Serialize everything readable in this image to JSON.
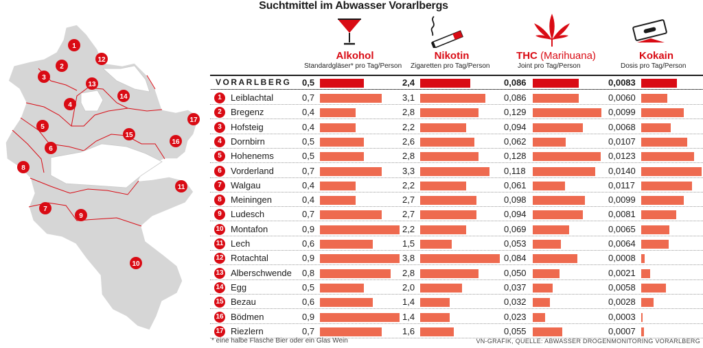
{
  "chart_data": {
    "type": "table",
    "title": "Suchtmittel im Abwasser Vorarlbergs",
    "series": [
      {
        "name": "Alkohol",
        "unit": "Standardgläser* pro Tag/Person",
        "color": "#ee6a4f",
        "max": 0.9
      },
      {
        "name": "Nikotin",
        "unit": "Zigaretten pro Tag/Person",
        "color": "#ee6a4f",
        "max": 3.8
      },
      {
        "name": "THC",
        "name_suffix": "(Marihuana)",
        "unit": "Joint pro Tag/Person",
        "color": "#ee6a4f",
        "max": 0.129
      },
      {
        "name": "Kokain",
        "unit": "Dosis pro Tag/Person",
        "color": "#ee6a4f",
        "max": 0.014
      }
    ],
    "total": {
      "label": "VORARLBERG",
      "values": [
        0.5,
        2.4,
        0.086,
        0.0083
      ],
      "labels": [
        "0,5",
        "2,4",
        "0,086",
        "0,0083"
      ]
    },
    "regions": [
      {
        "num": "1",
        "name": "Leiblachtal",
        "values": [
          0.7,
          3.1,
          0.086,
          0.006
        ],
        "labels": [
          "0,7",
          "3,1",
          "0,086",
          "0,0060"
        ]
      },
      {
        "num": "2",
        "name": "Bregenz",
        "values": [
          0.4,
          2.8,
          0.129,
          0.0099
        ],
        "labels": [
          "0,4",
          "2,8",
          "0,129",
          "0,0099"
        ]
      },
      {
        "num": "3",
        "name": "Hofsteig",
        "values": [
          0.4,
          2.2,
          0.094,
          0.0068
        ],
        "labels": [
          "0,4",
          "2,2",
          "0,094",
          "0,0068"
        ]
      },
      {
        "num": "4",
        "name": "Dornbirn",
        "values": [
          0.5,
          2.6,
          0.062,
          0.0107
        ],
        "labels": [
          "0,5",
          "2,6",
          "0,062",
          "0,0107"
        ]
      },
      {
        "num": "5",
        "name": "Hohenems",
        "values": [
          0.5,
          2.8,
          0.128,
          0.0123
        ],
        "labels": [
          "0,5",
          "2,8",
          "0,128",
          "0,0123"
        ]
      },
      {
        "num": "6",
        "name": "Vorderland",
        "values": [
          0.7,
          3.3,
          0.118,
          0.014
        ],
        "labels": [
          "0,7",
          "3,3",
          "0,118",
          "0,0140"
        ]
      },
      {
        "num": "7",
        "name": "Walgau",
        "values": [
          0.4,
          2.2,
          0.061,
          0.0117
        ],
        "labels": [
          "0,4",
          "2,2",
          "0,061",
          "0,0117"
        ]
      },
      {
        "num": "8",
        "name": "Meiningen",
        "values": [
          0.4,
          2.7,
          0.098,
          0.0099
        ],
        "labels": [
          "0,4",
          "2,7",
          "0,098",
          "0,0099"
        ]
      },
      {
        "num": "9",
        "name": "Ludesch",
        "values": [
          0.7,
          2.7,
          0.094,
          0.0081
        ],
        "labels": [
          "0,7",
          "2,7",
          "0,094",
          "0,0081"
        ]
      },
      {
        "num": "10",
        "name": "Montafon",
        "values": [
          0.9,
          2.2,
          0.069,
          0.0065
        ],
        "labels": [
          "0,9",
          "2,2",
          "0,069",
          "0,0065"
        ]
      },
      {
        "num": "11",
        "name": "Lech",
        "values": [
          0.6,
          1.5,
          0.053,
          0.0064
        ],
        "labels": [
          "0,6",
          "1,5",
          "0,053",
          "0,0064"
        ]
      },
      {
        "num": "12",
        "name": "Rotachtal",
        "values": [
          0.9,
          3.8,
          0.084,
          0.0008
        ],
        "labels": [
          "0,9",
          "3,8",
          "0,084",
          "0,0008"
        ]
      },
      {
        "num": "13",
        "name": "Alberschwende",
        "values": [
          0.8,
          2.8,
          0.05,
          0.0021
        ],
        "labels": [
          "0,8",
          "2,8",
          "0,050",
          "0,0021"
        ]
      },
      {
        "num": "14",
        "name": "Egg",
        "values": [
          0.5,
          2.0,
          0.037,
          0.0058
        ],
        "labels": [
          "0,5",
          "2,0",
          "0,037",
          "0,0058"
        ]
      },
      {
        "num": "15",
        "name": "Bezau",
        "values": [
          0.6,
          1.4,
          0.032,
          0.0028
        ],
        "labels": [
          "0,6",
          "1,4",
          "0,032",
          "0,0028"
        ]
      },
      {
        "num": "16",
        "name": "Bödmen",
        "values": [
          0.9,
          1.4,
          0.023,
          0.0003
        ],
        "labels": [
          "0,9",
          "1,4",
          "0,023",
          "0,0003"
        ]
      },
      {
        "num": "17",
        "name": "Riezlern",
        "values": [
          0.7,
          1.6,
          0.055,
          0.0007
        ],
        "labels": [
          "0,7",
          "1,6",
          "0,055",
          "0,0007"
        ]
      }
    ]
  },
  "footnote": "* eine halbe Flasche Bier oder ein Glas Wein",
  "source": "VN-GRAFIK, QUELLE: ABWASSER DROGENMONITORING VORARLBERG",
  "colors": {
    "accent": "#d90b14",
    "bar": "#ee6a4f",
    "map_fill": "#d6d6d6"
  },
  "icons": [
    "cocktail-glass-icon",
    "cigarette-icon",
    "cannabis-leaf-icon",
    "razor-blade-icon"
  ]
}
